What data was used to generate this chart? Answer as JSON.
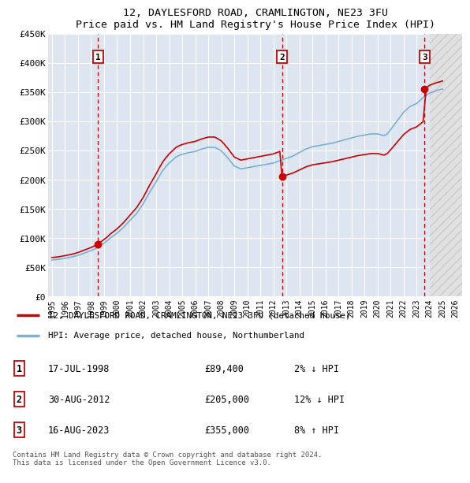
{
  "title": "12, DAYLESFORD ROAD, CRAMLINGTON, NE23 3FU",
  "subtitle": "Price paid vs. HM Land Registry's House Price Index (HPI)",
  "ylim": [
    0,
    450000
  ],
  "yticks": [
    0,
    50000,
    100000,
    150000,
    200000,
    250000,
    300000,
    350000,
    400000,
    450000
  ],
  "ytick_labels": [
    "£0",
    "£50K",
    "£100K",
    "£150K",
    "£200K",
    "£250K",
    "£300K",
    "£350K",
    "£400K",
    "£450K"
  ],
  "background_color": "#ffffff",
  "plot_background": "#dde6f0",
  "grid_color": "#ffffff",
  "sale_color": "#cc0000",
  "hpi_color": "#7bafd4",
  "sale_label": "12, DAYLESFORD ROAD, CRAMLINGTON, NE23 3FU (detached house)",
  "hpi_label": "HPI: Average price, detached house, Northumberland",
  "sales": [
    {
      "date": 1998.54,
      "price": 89400,
      "label": "1",
      "note": "17-JUL-1998",
      "amount": "£89,400",
      "pct": "2% ↓ HPI"
    },
    {
      "date": 2012.66,
      "price": 205000,
      "label": "2",
      "note": "30-AUG-2012",
      "amount": "£205,000",
      "pct": "12% ↓ HPI"
    },
    {
      "date": 2023.62,
      "price": 355000,
      "label": "3",
      "note": "16-AUG-2023",
      "amount": "£355,000",
      "pct": "8% ↑ HPI"
    }
  ],
  "hpi_data_x": [
    1995.0,
    1995.25,
    1995.5,
    1995.75,
    1996.0,
    1996.25,
    1996.5,
    1996.75,
    1997.0,
    1997.25,
    1997.5,
    1997.75,
    1998.0,
    1998.25,
    1998.5,
    1998.75,
    1999.0,
    1999.25,
    1999.5,
    1999.75,
    2000.0,
    2000.25,
    2000.5,
    2000.75,
    2001.0,
    2001.25,
    2001.5,
    2001.75,
    2002.0,
    2002.25,
    2002.5,
    2002.75,
    2003.0,
    2003.25,
    2003.5,
    2003.75,
    2004.0,
    2004.25,
    2004.5,
    2004.75,
    2005.0,
    2005.25,
    2005.5,
    2005.75,
    2006.0,
    2006.25,
    2006.5,
    2006.75,
    2007.0,
    2007.25,
    2007.5,
    2007.75,
    2008.0,
    2008.25,
    2008.5,
    2008.75,
    2009.0,
    2009.25,
    2009.5,
    2009.75,
    2010.0,
    2010.25,
    2010.5,
    2010.75,
    2011.0,
    2011.25,
    2011.5,
    2011.75,
    2012.0,
    2012.25,
    2012.5,
    2012.75,
    2013.0,
    2013.25,
    2013.5,
    2013.75,
    2014.0,
    2014.25,
    2014.5,
    2014.75,
    2015.0,
    2015.25,
    2015.5,
    2015.75,
    2016.0,
    2016.25,
    2016.5,
    2016.75,
    2017.0,
    2017.25,
    2017.5,
    2017.75,
    2018.0,
    2018.25,
    2018.5,
    2018.75,
    2019.0,
    2019.25,
    2019.5,
    2019.75,
    2020.0,
    2020.25,
    2020.5,
    2020.75,
    2021.0,
    2021.25,
    2021.5,
    2021.75,
    2022.0,
    2022.25,
    2022.5,
    2022.75,
    2023.0,
    2023.25,
    2023.5,
    2023.75,
    2024.0,
    2024.25,
    2024.5,
    2024.75,
    2025.0
  ],
  "hpi_data_y": [
    62000,
    62500,
    63000,
    64000,
    65000,
    66000,
    67000,
    68500,
    70000,
    72000,
    74000,
    76000,
    78000,
    80500,
    83000,
    87000,
    91000,
    95000,
    100000,
    104000,
    108000,
    113000,
    118000,
    124000,
    130000,
    136000,
    142000,
    150000,
    158000,
    168000,
    178000,
    187000,
    196000,
    206000,
    215000,
    222000,
    228000,
    233000,
    238000,
    241000,
    243000,
    244500,
    246000,
    247000,
    248000,
    250000,
    252000,
    253500,
    255000,
    255000,
    255000,
    252000,
    249000,
    243000,
    237000,
    230000,
    223000,
    220500,
    218000,
    219000,
    220000,
    221000,
    222000,
    223000,
    224000,
    225000,
    226000,
    227000,
    228000,
    230000,
    232000,
    234000,
    236000,
    238000,
    240000,
    243000,
    246000,
    249000,
    252000,
    254000,
    256000,
    257000,
    258000,
    259000,
    260000,
    261000,
    262000,
    263500,
    265000,
    266500,
    268000,
    269500,
    271000,
    272500,
    274000,
    275000,
    276000,
    277000,
    278000,
    278000,
    278000,
    276500,
    275000,
    278000,
    285000,
    292500,
    300000,
    307500,
    315000,
    320000,
    325000,
    327500,
    330000,
    335000,
    340000,
    344000,
    348000,
    350000,
    352000,
    353500,
    355000
  ],
  "footer": "Contains HM Land Registry data © Crown copyright and database right 2024.\nThis data is licensed under the Open Government Licence v3.0.",
  "xtick_years": [
    1995,
    1996,
    1997,
    1998,
    1999,
    2000,
    2001,
    2002,
    2003,
    2004,
    2005,
    2006,
    2007,
    2008,
    2009,
    2010,
    2011,
    2012,
    2013,
    2014,
    2015,
    2016,
    2017,
    2018,
    2019,
    2020,
    2021,
    2022,
    2023,
    2024,
    2025,
    2026
  ],
  "hatch_start": 2024.0,
  "hatch_end": 2026.5,
  "xlim_left": 1994.7,
  "xlim_right": 2026.5
}
